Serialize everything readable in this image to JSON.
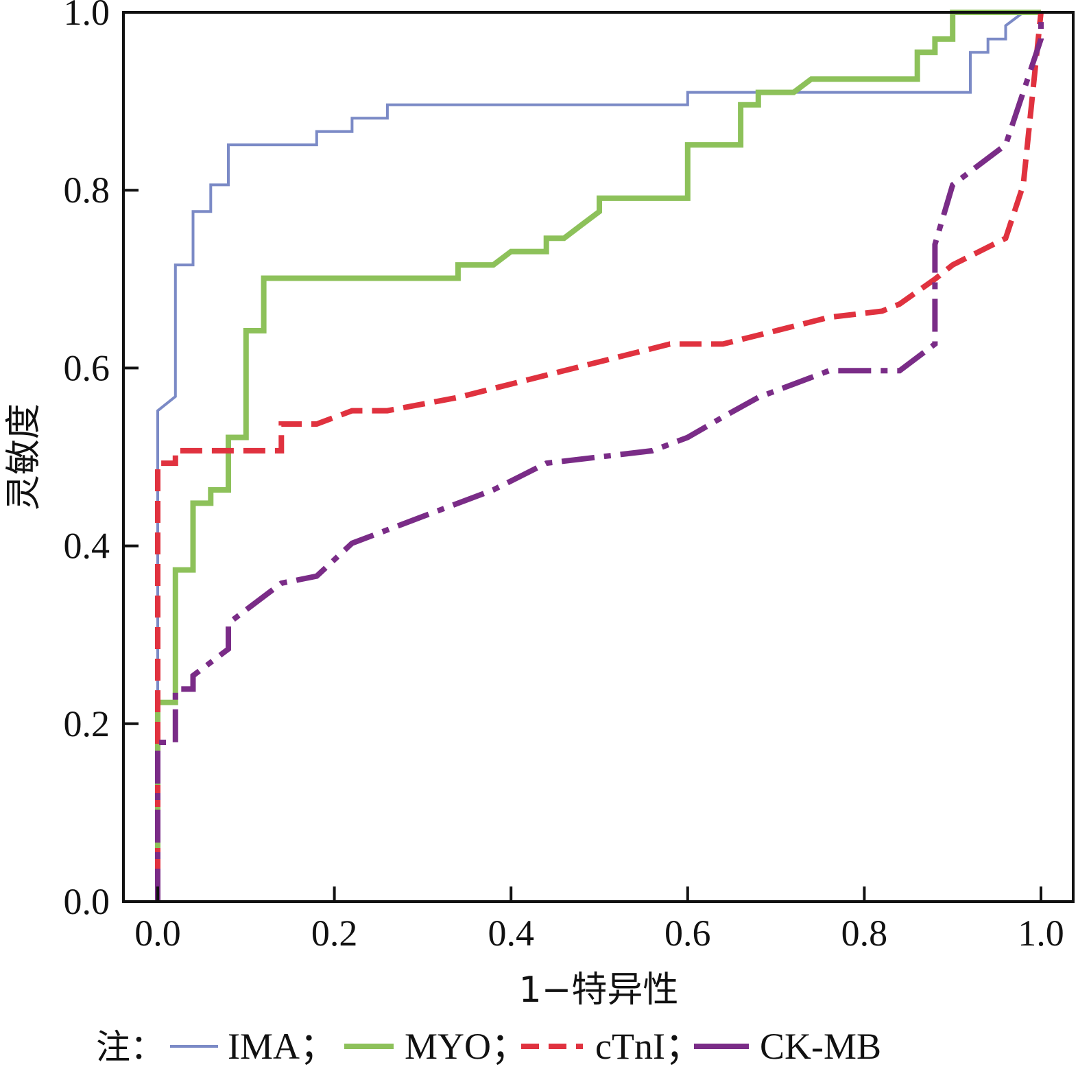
{
  "chart_data": {
    "type": "line",
    "xlabel": "1−特异性",
    "ylabel": "灵敏度",
    "xlim": [
      0,
      1
    ],
    "ylim": [
      0,
      1
    ],
    "x_ticks": [
      "0.0",
      "0.2",
      "0.4",
      "0.6",
      "0.8",
      "1.0"
    ],
    "y_ticks": [
      "0.0",
      "0.2",
      "0.4",
      "0.6",
      "0.8",
      "1.0"
    ],
    "grid": false,
    "legend": {
      "placement": "bottom",
      "prefix": "注：",
      "separator": "；"
    },
    "series": [
      {
        "name": "IMA",
        "color": "#7b8ac6",
        "style": "solid-thin",
        "points": [
          [
            0,
            0
          ],
          [
            0,
            0.552
          ],
          [
            0.02,
            0.568
          ],
          [
            0.02,
            0.716
          ],
          [
            0.04,
            0.716
          ],
          [
            0.04,
            0.776
          ],
          [
            0.06,
            0.776
          ],
          [
            0.06,
            0.806
          ],
          [
            0.08,
            0.806
          ],
          [
            0.08,
            0.851
          ],
          [
            0.18,
            0.851
          ],
          [
            0.18,
            0.866
          ],
          [
            0.22,
            0.866
          ],
          [
            0.22,
            0.881
          ],
          [
            0.26,
            0.881
          ],
          [
            0.26,
            0.896
          ],
          [
            0.6,
            0.896
          ],
          [
            0.6,
            0.91
          ],
          [
            0.92,
            0.91
          ],
          [
            0.92,
            0.955
          ],
          [
            0.94,
            0.955
          ],
          [
            0.94,
            0.97
          ],
          [
            0.96,
            0.97
          ],
          [
            0.96,
            0.985
          ],
          [
            0.98,
            1.0
          ],
          [
            1.0,
            1.0
          ]
        ]
      },
      {
        "name": "MYO",
        "color": "#8dc15a",
        "style": "solid-thick",
        "points": [
          [
            0,
            0
          ],
          [
            0,
            0.224
          ],
          [
            0.02,
            0.224
          ],
          [
            0.02,
            0.373
          ],
          [
            0.04,
            0.373
          ],
          [
            0.04,
            0.448
          ],
          [
            0.06,
            0.448
          ],
          [
            0.06,
            0.463
          ],
          [
            0.08,
            0.463
          ],
          [
            0.08,
            0.522
          ],
          [
            0.1,
            0.522
          ],
          [
            0.1,
            0.642
          ],
          [
            0.12,
            0.642
          ],
          [
            0.12,
            0.701
          ],
          [
            0.34,
            0.701
          ],
          [
            0.34,
            0.716
          ],
          [
            0.38,
            0.716
          ],
          [
            0.4,
            0.731
          ],
          [
            0.44,
            0.731
          ],
          [
            0.44,
            0.746
          ],
          [
            0.46,
            0.746
          ],
          [
            0.48,
            0.761
          ],
          [
            0.5,
            0.776
          ],
          [
            0.5,
            0.791
          ],
          [
            0.6,
            0.791
          ],
          [
            0.6,
            0.851
          ],
          [
            0.66,
            0.851
          ],
          [
            0.66,
            0.896
          ],
          [
            0.68,
            0.896
          ],
          [
            0.68,
            0.91
          ],
          [
            0.72,
            0.91
          ],
          [
            0.74,
            0.925
          ],
          [
            0.86,
            0.925
          ],
          [
            0.86,
            0.955
          ],
          [
            0.88,
            0.955
          ],
          [
            0.88,
            0.97
          ],
          [
            0.9,
            0.97
          ],
          [
            0.9,
            1.0
          ],
          [
            1.0,
            1.0
          ]
        ]
      },
      {
        "name": "cTnI",
        "color": "#e0323f",
        "style": "dashed",
        "points": [
          [
            0,
            0
          ],
          [
            0,
            0.493
          ],
          [
            0.02,
            0.493
          ],
          [
            0.02,
            0.507
          ],
          [
            0.14,
            0.507
          ],
          [
            0.14,
            0.537
          ],
          [
            0.18,
            0.537
          ],
          [
            0.22,
            0.552
          ],
          [
            0.26,
            0.552
          ],
          [
            0.34,
            0.567
          ],
          [
            0.4,
            0.582
          ],
          [
            0.46,
            0.597
          ],
          [
            0.52,
            0.612
          ],
          [
            0.58,
            0.627
          ],
          [
            0.64,
            0.627
          ],
          [
            0.7,
            0.642
          ],
          [
            0.76,
            0.657
          ],
          [
            0.82,
            0.664
          ],
          [
            0.84,
            0.672
          ],
          [
            0.88,
            0.7
          ],
          [
            0.9,
            0.716
          ],
          [
            0.96,
            0.746
          ],
          [
            0.98,
            0.806
          ],
          [
            1.0,
            1.0
          ]
        ]
      },
      {
        "name": "CK-MB",
        "color": "#7a2c87",
        "style": "dashdot",
        "points": [
          [
            0,
            0
          ],
          [
            0,
            0.179
          ],
          [
            0.02,
            0.179
          ],
          [
            0.02,
            0.239
          ],
          [
            0.04,
            0.239
          ],
          [
            0.04,
            0.254
          ],
          [
            0.08,
            0.284
          ],
          [
            0.08,
            0.313
          ],
          [
            0.1,
            0.328
          ],
          [
            0.14,
            0.358
          ],
          [
            0.18,
            0.366
          ],
          [
            0.22,
            0.403
          ],
          [
            0.26,
            0.418
          ],
          [
            0.3,
            0.433
          ],
          [
            0.38,
            0.463
          ],
          [
            0.44,
            0.493
          ],
          [
            0.5,
            0.5
          ],
          [
            0.56,
            0.507
          ],
          [
            0.6,
            0.522
          ],
          [
            0.64,
            0.545
          ],
          [
            0.68,
            0.567
          ],
          [
            0.72,
            0.582
          ],
          [
            0.76,
            0.597
          ],
          [
            0.84,
            0.597
          ],
          [
            0.88,
            0.627
          ],
          [
            0.88,
            0.739
          ],
          [
            0.9,
            0.806
          ],
          [
            0.96,
            0.851
          ],
          [
            1.0,
            0.97
          ],
          [
            1.0,
            1.0
          ]
        ]
      }
    ]
  }
}
